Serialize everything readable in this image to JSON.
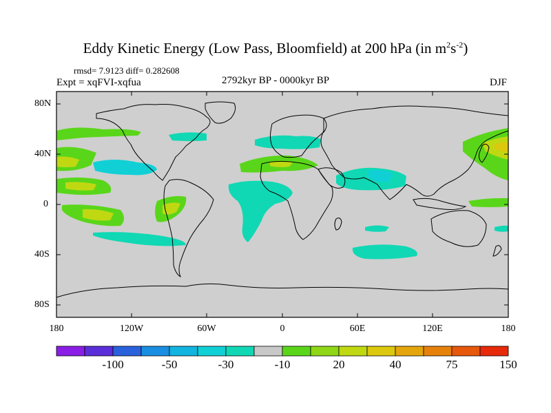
{
  "title": {
    "main": "Eddy Kinetic Energy (Low Pass, Bloomfield) at 200 hPa (in m",
    "sup1": "2",
    "mid": "s",
    "sup2": "-2",
    "end": ")"
  },
  "stats": "rmsd= 7.9123 diff= 0.282608",
  "experiment": "Expt = xqFVI-xqfua",
  "period": "2792kyr BP - 0000kyr BP",
  "season": "DJF",
  "map": {
    "lat_ticks": [
      "80N",
      "40N",
      "0",
      "40S",
      "80S"
    ],
    "lon_ticks": [
      "180",
      "120W",
      "60W",
      "0",
      "60E",
      "120E",
      "180"
    ],
    "ocean_color": "#cfcfcf",
    "coast_color": "#000000"
  },
  "colorbar": {
    "colors": [
      "#8a1ee6",
      "#5a2ed8",
      "#2a62dc",
      "#1a8ee0",
      "#12b4e0",
      "#10d0d6",
      "#10d8b4",
      "#c8c8c8",
      "#5ad61a",
      "#8ed616",
      "#c0d812",
      "#dcc80e",
      "#e4a60c",
      "#e6820c",
      "#e6580c",
      "#e62a0a"
    ],
    "labels": [
      "-100",
      "-50",
      "-30",
      "-10",
      "20",
      "40",
      "75",
      "150"
    ]
  }
}
